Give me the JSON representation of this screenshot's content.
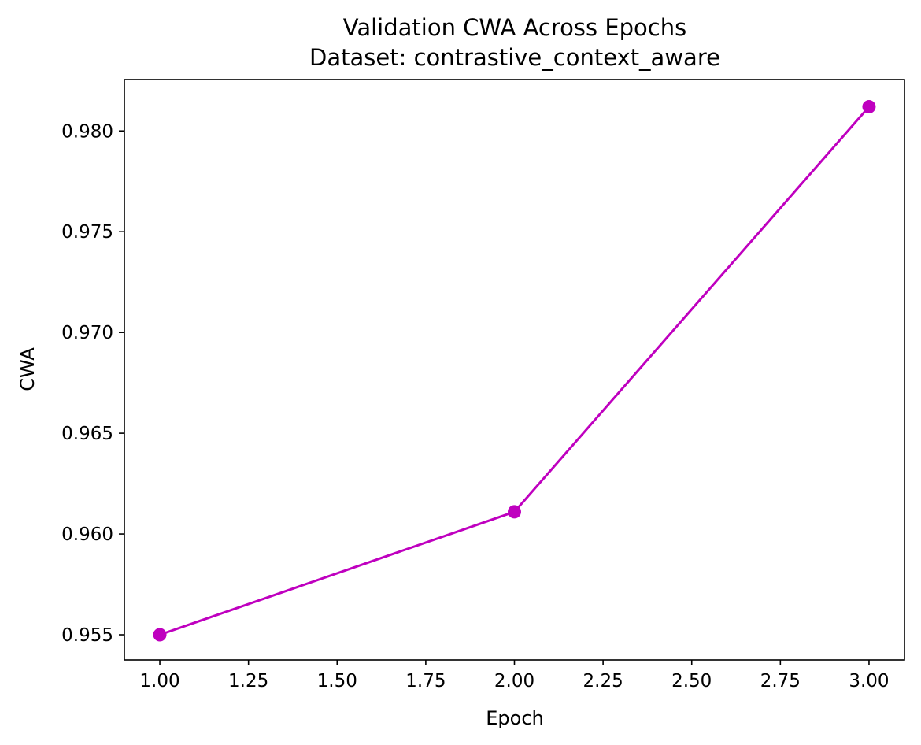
{
  "chart_data": {
    "type": "line",
    "title": "Validation CWA Across Epochs",
    "subtitle": "Dataset: contrastive_context_aware",
    "xlabel": "Epoch",
    "ylabel": "CWA",
    "x": [
      1,
      2,
      3
    ],
    "series": [
      {
        "values": [
          0.955,
          0.9611,
          0.9812
        ],
        "color": "#bf00bf",
        "marker": "circle"
      }
    ],
    "xlim": [
      0.9,
      3.1
    ],
    "ylim": [
      0.95375,
      0.98255
    ],
    "xticks": [
      1.0,
      1.25,
      1.5,
      1.75,
      2.0,
      2.25,
      2.5,
      2.75,
      3.0
    ],
    "xtick_labels": [
      "1.00",
      "1.25",
      "1.50",
      "1.75",
      "2.00",
      "2.25",
      "2.50",
      "2.75",
      "3.00"
    ],
    "yticks": [
      0.955,
      0.96,
      0.965,
      0.97,
      0.975,
      0.98
    ],
    "ytick_labels": [
      "0.955",
      "0.960",
      "0.965",
      "0.970",
      "0.975",
      "0.980"
    ],
    "grid": false,
    "legend": "none"
  }
}
